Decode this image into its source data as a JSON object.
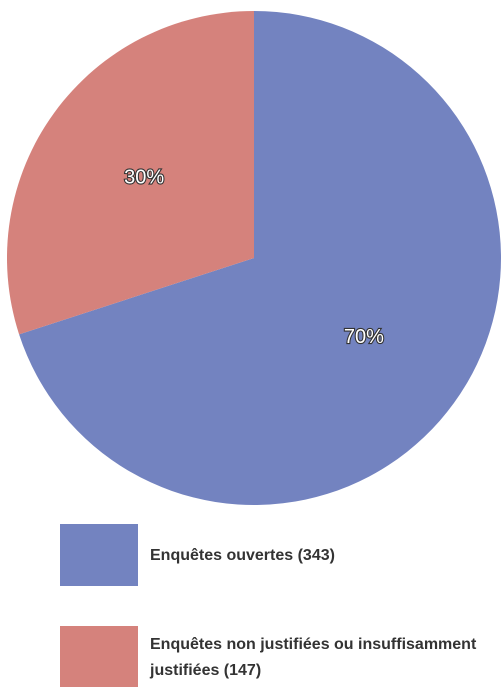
{
  "chart_data": {
    "type": "pie",
    "categories": [
      "Enquêtes ouvertes (343)",
      "Enquêtes non justifiées ou insuffisamment justifiées (147)"
    ],
    "values": [
      70,
      30
    ],
    "value_labels": [
      "70%",
      "30%"
    ],
    "colors": [
      "#7383c0",
      "#d5827c"
    ]
  }
}
